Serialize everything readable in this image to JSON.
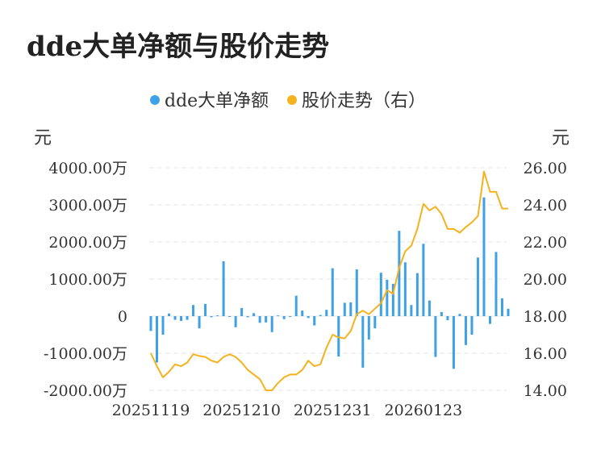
{
  "title": "dde大单净额与股价走势",
  "colors": {
    "bar": "#3ea1e6",
    "line": "#f5b21d",
    "grid": "#e6e6e6",
    "text": "#333333"
  },
  "legend": [
    {
      "label": "dde大单净额",
      "color": "#3ea1e6"
    },
    {
      "label": "股价走势（右）",
      "color": "#f5b21d"
    }
  ],
  "units": {
    "left": "元",
    "right": "元"
  },
  "chart_data": {
    "type": "bar+line",
    "title": "dde大单净额与股价走势",
    "left_axis": {
      "unit": "元",
      "ylim": [
        -2000,
        4000
      ],
      "ticks": [
        4000,
        3000,
        2000,
        1000,
        0,
        -1000,
        -2000
      ],
      "tick_labels": [
        "4000.00万",
        "3000.00万",
        "2000.00万",
        "1000.00万",
        "0",
        "-1000.00万",
        "-2000.00万"
      ]
    },
    "right_axis": {
      "unit": "元",
      "ylim": [
        14,
        26
      ],
      "ticks": [
        26,
        24,
        22,
        20,
        18,
        16,
        14
      ],
      "tick_labels": [
        "26.00",
        "24.00",
        "22.00",
        "20.00",
        "18.00",
        "16.00",
        "14.00"
      ]
    },
    "x_tick_labels": [
      {
        "index": 0,
        "label": "20251119"
      },
      {
        "index": 15,
        "label": "20251210"
      },
      {
        "index": 30,
        "label": "20251231"
      },
      {
        "index": 45,
        "label": "20260123"
      }
    ],
    "grid": true,
    "legend_position": "top-center",
    "series": [
      {
        "name": "dde大单净额",
        "type": "bar",
        "axis": "left",
        "values": [
          -400,
          -1250,
          -500,
          70,
          -100,
          -130,
          -100,
          300,
          -330,
          330,
          -30,
          20,
          1480,
          -20,
          -300,
          220,
          -30,
          80,
          -180,
          -170,
          -430,
          20,
          -80,
          -20,
          550,
          150,
          -50,
          -250,
          30,
          170,
          1290,
          -1090,
          360,
          370,
          1260,
          -1390,
          -630,
          -330,
          1170,
          980,
          870,
          2300,
          1450,
          300,
          1160,
          1950,
          420,
          -1100,
          110,
          -110,
          -1420,
          60,
          -780,
          -500,
          1580,
          3200,
          -210,
          1730,
          480,
          200
        ]
      },
      {
        "name": "股价走势（右）",
        "type": "line",
        "axis": "right",
        "values": [
          16.0,
          15.3,
          14.7,
          15.0,
          15.4,
          15.3,
          15.5,
          15.95,
          15.85,
          15.8,
          15.6,
          15.5,
          15.8,
          15.95,
          15.8,
          15.5,
          15.1,
          14.85,
          14.6,
          14.0,
          14.0,
          14.4,
          14.7,
          14.85,
          14.85,
          15.1,
          15.6,
          15.3,
          15.4,
          16.3,
          17.0,
          16.85,
          16.8,
          17.2,
          18.1,
          18.3,
          18.1,
          18.4,
          18.7,
          19.4,
          19.2,
          20.6,
          21.5,
          21.8,
          22.7,
          24.05,
          23.7,
          23.9,
          23.5,
          22.7,
          22.7,
          22.5,
          22.8,
          23.05,
          23.4,
          25.8,
          24.7,
          24.7,
          23.8,
          23.8
        ]
      }
    ]
  }
}
